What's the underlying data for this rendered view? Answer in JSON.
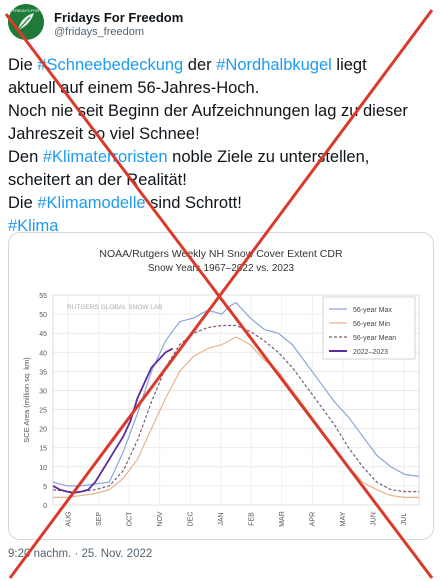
{
  "tweet": {
    "author_name": "Fridays For Freedom",
    "author_handle": "@fridays_freedom",
    "avatar_icon": "fff-logo-icon",
    "avatar_text": "FRIDAYS FOR",
    "lines": [
      [
        {
          "t": "Die "
        },
        {
          "t": "#Schneebedeckung",
          "tag": true
        },
        {
          "t": " der "
        },
        {
          "t": "#Nordhalbkugel",
          "tag": true
        },
        {
          "t": " liegt"
        }
      ],
      [
        {
          "t": "aktuell auf einem 56-Jahres-Hoch."
        }
      ],
      [
        {
          "t": "Noch nie seit Beginn der Aufzeichnungen lag zu dieser"
        }
      ],
      [
        {
          "t": "Jahreszeit so viel Schnee!"
        }
      ],
      [
        {
          "t": "Den "
        },
        {
          "t": "#Klimaterroristen",
          "tag": true
        },
        {
          "t": " noble Ziele zu unterstellen,"
        }
      ],
      [
        {
          "t": "scheitert an der Realität!"
        }
      ],
      [
        {
          "t": "Die "
        },
        {
          "t": "#Klimamodelle",
          "tag": true
        },
        {
          "t": " sind Schrott!"
        }
      ],
      [
        {
          "t": "#Klima",
          "tag": true
        }
      ]
    ],
    "timestamp": "9:20 nachm. · 25. Nov. 2022",
    "hashtag_color": "#1d9bf0",
    "overlay": {
      "type": "red-cross",
      "color": "#d93a2b"
    }
  },
  "chart_data": {
    "type": "line",
    "title": "NOAA/Rutgers Weekly NH Snow Cover Extent CDR",
    "subtitle": "Snow Years 1967–2022 vs. 2023",
    "watermark": "RUTGERS GLOBAL SNOW LAB",
    "ylabel": "SCE Area (million sq. km)",
    "xlabel": "",
    "ylim": [
      0,
      55
    ],
    "yticks": [
      0,
      5,
      10,
      15,
      20,
      25,
      30,
      35,
      40,
      45,
      50,
      55
    ],
    "xlim": [
      0,
      52
    ],
    "months": [
      "AUG",
      "SEP",
      "OCT",
      "NOV",
      "DEC",
      "JAN",
      "FEB",
      "MAR",
      "APR",
      "MAY",
      "JUN",
      "JUL"
    ],
    "grid": true,
    "legend_position": "top-right",
    "series": [
      {
        "name": "56-year Max",
        "color": "#8aa6d8",
        "style": "solid",
        "x": [
          0,
          2,
          4,
          6,
          8,
          10,
          12,
          14,
          16,
          18,
          20,
          22,
          24,
          25,
          26,
          28,
          30,
          32,
          34,
          36,
          38,
          40,
          42,
          44,
          46,
          48,
          50,
          52
        ],
        "y": [
          6,
          5,
          5,
          5.5,
          6,
          14,
          24,
          35,
          43,
          48,
          49,
          51,
          50,
          52,
          53,
          49,
          46,
          45,
          42,
          37,
          32,
          27,
          23,
          18,
          13,
          10,
          8,
          7.5
        ]
      },
      {
        "name": "56-year Min",
        "color": "#e8b48e",
        "style": "solid",
        "x": [
          0,
          2,
          4,
          6,
          8,
          10,
          12,
          14,
          16,
          18,
          20,
          22,
          24,
          26,
          28,
          30,
          32,
          34,
          36,
          38,
          40,
          42,
          44,
          46,
          48,
          50,
          52
        ],
        "y": [
          2,
          2,
          2.5,
          3,
          4,
          7,
          12,
          20,
          28,
          35,
          39,
          41,
          42,
          44,
          42,
          38,
          35,
          30,
          25,
          20,
          15,
          10,
          6,
          4,
          2.5,
          2,
          2
        ]
      },
      {
        "name": "56-year Mean",
        "color": "#7a5a78",
        "style": "dashed",
        "x": [
          0,
          2,
          4,
          6,
          8,
          10,
          12,
          14,
          16,
          18,
          20,
          22,
          24,
          26,
          28,
          30,
          32,
          34,
          36,
          38,
          40,
          42,
          44,
          46,
          48,
          50,
          52
        ],
        "y": [
          4,
          3.5,
          3.5,
          4,
          5,
          9,
          17,
          27,
          36,
          42,
          45,
          46.5,
          47,
          47,
          45.5,
          43,
          40,
          36,
          31,
          26,
          21,
          15,
          10,
          6,
          4,
          3.5,
          3.5
        ]
      },
      {
        "name": "2022–2023",
        "color": "#5a2ca0",
        "style": "solid",
        "x": [
          0,
          1,
          2,
          3,
          4,
          5,
          6,
          7,
          8,
          9,
          10,
          11,
          12,
          13,
          14,
          15,
          16,
          17
        ],
        "y": [
          5,
          4,
          3.5,
          3.2,
          3.5,
          4,
          6,
          9,
          12,
          15,
          18,
          22,
          28,
          32,
          36,
          38,
          40,
          41
        ]
      }
    ]
  }
}
